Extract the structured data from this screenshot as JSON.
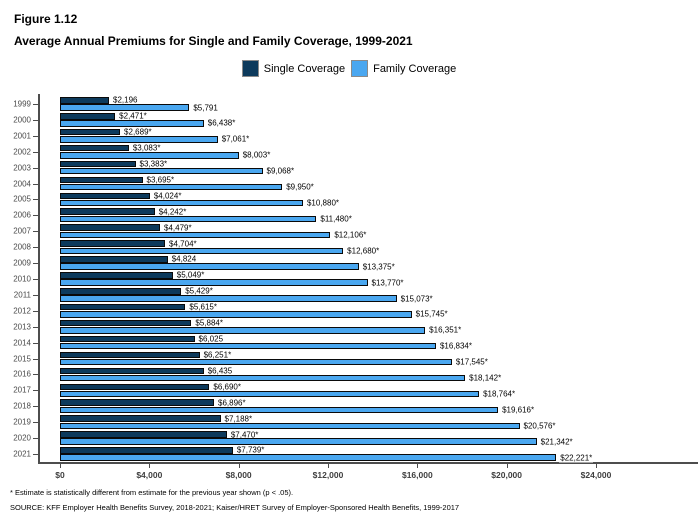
{
  "figure_label": "Figure 1.12",
  "title": "Average Annual Premiums for Single and Family Coverage, 1999-2021",
  "legend": [
    {
      "label": "Single Coverage",
      "color": "#0d3a5c"
    },
    {
      "label": "Family Coverage",
      "color": "#4aa7f0"
    }
  ],
  "chart_data": {
    "type": "bar",
    "orientation": "horizontal",
    "title": "Average Annual Premiums for Single and Family Coverage, 1999-2021",
    "categories": [
      "1999",
      "2000",
      "2001",
      "2002",
      "2003",
      "2004",
      "2005",
      "2006",
      "2007",
      "2008",
      "2009",
      "2010",
      "2011",
      "2012",
      "2013",
      "2014",
      "2015",
      "2016",
      "2017",
      "2018",
      "2019",
      "2020",
      "2021"
    ],
    "series": [
      {
        "name": "Single Coverage",
        "color": "#0d3a5c",
        "values": [
          2196,
          2471,
          2689,
          3083,
          3383,
          3695,
          4024,
          4242,
          4479,
          4704,
          4824,
          5049,
          5429,
          5615,
          5884,
          6025,
          6251,
          6435,
          6690,
          6896,
          7188,
          7470,
          7739
        ],
        "labels": [
          "$2,196",
          "$2,471*",
          "$2,689*",
          "$3,083*",
          "$3,383*",
          "$3,695*",
          "$4,024*",
          "$4,242*",
          "$4,479*",
          "$4,704*",
          "$4,824",
          "$5,049*",
          "$5,429*",
          "$5,615*",
          "$5,884*",
          "$6,025",
          "$6,251*",
          "$6,435",
          "$6,690*",
          "$6,896*",
          "$7,188*",
          "$7,470*",
          "$7,739*"
        ]
      },
      {
        "name": "Family Coverage",
        "color": "#4aa7f0",
        "values": [
          5791,
          6438,
          7061,
          8003,
          9068,
          9950,
          10880,
          11480,
          12106,
          12680,
          13375,
          13770,
          15073,
          15745,
          16351,
          16834,
          17545,
          18142,
          18764,
          19616,
          20576,
          21342,
          22221
        ],
        "labels": [
          "$5,791",
          "$6,438*",
          "$7,061*",
          "$8,003*",
          "$9,068*",
          "$9,950*",
          "$10,880*",
          "$11,480*",
          "$12,106*",
          "$12,680*",
          "$13,375*",
          "$13,770*",
          "$15,073*",
          "$15,745*",
          "$16,351*",
          "$16,834*",
          "$17,545*",
          "$18,142*",
          "$18,764*",
          "$19,616*",
          "$20,576*",
          "$21,342*",
          "$22,221*"
        ]
      }
    ],
    "xlabel": "",
    "ylabel": "",
    "xlim": [
      0,
      24000
    ],
    "x_ticks": {
      "values": [
        0,
        4000,
        8000,
        12000,
        16000,
        20000,
        24000
      ],
      "labels": [
        "$0",
        "$4,000",
        "$8,000",
        "$12,000",
        "$16,000",
        "$20,000",
        "$24,000"
      ]
    },
    "grid": false,
    "legend_position": "top-center"
  },
  "footnotes": [
    "* Estimate is statistically different from estimate for the previous year shown (p < .05).",
    "SOURCE: KFF Employer Health Benefits Survey, 2018-2021; Kaiser/HRET Survey of Employer-Sponsored Health Benefits, 1999-2017"
  ]
}
